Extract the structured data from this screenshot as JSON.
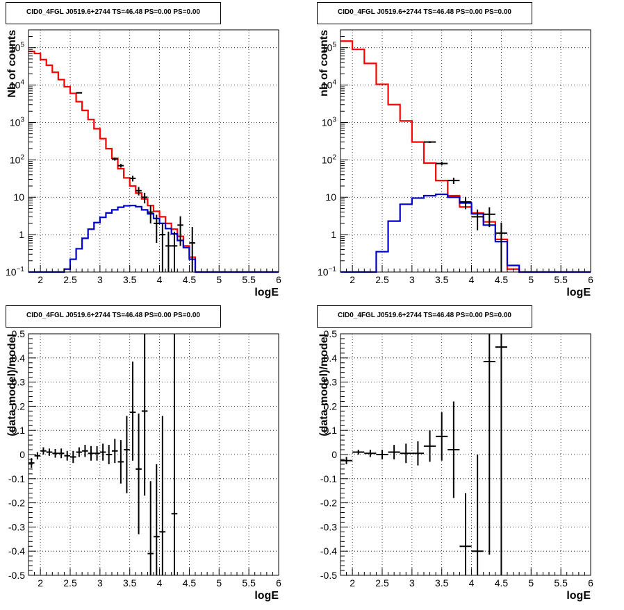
{
  "colors": {
    "model": "#ff0000",
    "source": "#0000cc",
    "data": "#000000",
    "frame": "#000000"
  },
  "chart_data": [
    {
      "type": "line",
      "title": "CID0_4FGL J0519.6+2744 TS=46.48 PS=0.00 PS=0.00",
      "xlabel": "logE",
      "ylabel": "Nb of counts",
      "yscale": "log",
      "xlim": [
        1.8,
        6.0
      ],
      "ylim": [
        0.1,
        300000
      ],
      "grid": true,
      "xticks": [
        "2",
        "2.5",
        "3",
        "3.5",
        "4",
        "4.5",
        "5",
        "5.5",
        "6"
      ],
      "yticks": [
        "10^-1",
        "1",
        "10",
        "10^2",
        "10^3",
        "10^4",
        "10^5"
      ],
      "series": [
        {
          "style": "step",
          "color": "model",
          "bin_width": 0.1,
          "x": [
            1.85,
            1.95,
            2.05,
            2.15,
            2.25,
            2.35,
            2.45,
            2.55,
            2.65,
            2.75,
            2.85,
            2.95,
            3.05,
            3.15,
            3.25,
            3.35,
            3.45,
            3.55,
            3.65,
            3.75,
            3.85,
            3.95,
            4.05,
            4.15,
            4.25,
            4.35,
            4.45,
            4.55,
            4.65,
            4.75,
            4.85,
            4.95,
            5.05,
            5.15,
            5.25,
            5.35,
            5.45,
            5.55,
            5.65,
            5.75,
            5.85,
            5.95
          ],
          "values": [
            80000,
            70000,
            48000,
            34000,
            22000,
            14000,
            9000,
            6000,
            3600,
            2100,
            1200,
            680,
            370,
            200,
            110,
            58,
            33,
            20,
            13,
            9,
            6,
            4.2,
            3,
            2,
            1.4,
            0.9,
            0.5,
            0.25,
            0.1,
            0.1,
            0.1,
            0.1,
            0.1,
            0.1,
            0.1,
            0.1,
            0.1,
            0.1,
            0.1,
            0.1,
            0.1,
            0.1
          ]
        },
        {
          "style": "step",
          "color": "source",
          "bin_width": 0.1,
          "x": [
            1.85,
            1.95,
            2.05,
            2.15,
            2.25,
            2.35,
            2.45,
            2.55,
            2.65,
            2.75,
            2.85,
            2.95,
            3.05,
            3.15,
            3.25,
            3.35,
            3.45,
            3.55,
            3.65,
            3.75,
            3.85,
            3.95,
            4.05,
            4.15,
            4.25,
            4.35,
            4.45,
            4.55,
            4.65,
            4.75,
            4.85,
            4.95,
            5.05,
            5.15,
            5.25,
            5.35,
            5.45,
            5.55,
            5.65,
            5.75,
            5.85,
            5.95
          ],
          "values": [
            0.1,
            0.1,
            0.1,
            0.1,
            0.1,
            0.1,
            0.12,
            0.22,
            0.42,
            0.8,
            1.4,
            2.1,
            2.9,
            3.8,
            4.6,
            5.4,
            5.9,
            6.0,
            5.6,
            4.6,
            3.6,
            2.7,
            2.0,
            1.45,
            1.05,
            0.7,
            0.45,
            0.22,
            0.1,
            0.1,
            0.1,
            0.1,
            0.1,
            0.1,
            0.1,
            0.1,
            0.1,
            0.1,
            0.1,
            0.1,
            0.1,
            0.1
          ]
        },
        {
          "style": "points",
          "color": "data",
          "bin_width": 0.1,
          "x": [
            2.65,
            3.25,
            3.35,
            3.55,
            3.65,
            3.75,
            3.85,
            3.95,
            4.05,
            4.15,
            4.25,
            4.35,
            4.55
          ],
          "values": [
            6200,
            105,
            70,
            32,
            15,
            10,
            4,
            2,
            1,
            0.5,
            0.5,
            1.8,
            0.6
          ],
          "err_low": [
            80,
            10,
            8,
            5.5,
            3.8,
            3.1,
            2,
            1.4,
            1,
            0.5,
            0.5,
            1.3,
            0.6
          ],
          "err_high": [
            80,
            10,
            8,
            5.5,
            3.8,
            3.1,
            2,
            1.4,
            1,
            0.7,
            0.7,
            1.3,
            1
          ]
        }
      ]
    },
    {
      "type": "line",
      "title": "CID0_4FGL J0519.6+2744 TS=46.48 PS=0.00 PS=0.00",
      "xlabel": "logE",
      "ylabel": "nb of counts",
      "yscale": "log",
      "xlim": [
        1.8,
        6.0
      ],
      "ylim": [
        0.1,
        300000
      ],
      "grid": true,
      "xticks": [
        "2",
        "2.5",
        "3",
        "3.5",
        "4",
        "4.5",
        "5",
        "5.5",
        "6"
      ],
      "yticks": [
        "10^-1",
        "1",
        "10",
        "10^2",
        "10^3",
        "10^4",
        "10^5"
      ],
      "series": [
        {
          "style": "step",
          "color": "model",
          "bin_width": 0.2,
          "x": [
            1.9,
            2.1,
            2.3,
            2.5,
            2.7,
            2.9,
            3.1,
            3.3,
            3.5,
            3.7,
            3.9,
            4.1,
            4.3,
            4.5,
            4.7,
            4.9,
            5.1,
            5.3,
            5.5,
            5.7,
            5.9
          ],
          "values": [
            150000,
            90000,
            38000,
            10500,
            3000,
            1100,
            300,
            82,
            28,
            11,
            5.5,
            3.8,
            2.2,
            0.75,
            0.12,
            0.1,
            0.1,
            0.1,
            0.1,
            0.1,
            0.1
          ]
        },
        {
          "style": "step",
          "color": "source",
          "bin_width": 0.2,
          "x": [
            1.9,
            2.1,
            2.3,
            2.5,
            2.7,
            2.9,
            3.1,
            3.3,
            3.5,
            3.7,
            3.9,
            4.1,
            4.3,
            4.5,
            4.7,
            4.9,
            5.1,
            5.3,
            5.5,
            5.7,
            5.9
          ],
          "values": [
            0.1,
            0.1,
            0.1,
            0.35,
            2.3,
            6.5,
            9.5,
            11,
            12,
            10,
            7,
            3.6,
            1.8,
            0.65,
            0.15,
            0.1,
            0.1,
            0.1,
            0.1,
            0.1,
            0.1
          ]
        },
        {
          "style": "points",
          "color": "data",
          "bin_width": 0.2,
          "x": [
            3.3,
            3.5,
            3.7,
            3.9,
            4.1,
            4.3,
            4.5
          ],
          "values": [
            300,
            80,
            28,
            7.5,
            3,
            3.5,
            1.1
          ],
          "err_low": [
            17,
            9,
            5.3,
            2.7,
            1.7,
            1.9,
            1
          ],
          "err_high": [
            17,
            9,
            5.3,
            2.7,
            1.7,
            1.9,
            1
          ]
        }
      ]
    },
    {
      "type": "scatter",
      "title": "CID0_4FGL J0519.6+2744 TS=46.48 PS=0.00 PS=0.00",
      "xlabel": "logE",
      "ylabel": "(data-model)/model",
      "xlim": [
        1.8,
        6.0
      ],
      "ylim": [
        -0.5,
        0.5
      ],
      "grid": true,
      "xticks": [
        "2",
        "2.5",
        "3",
        "3.5",
        "4",
        "4.5",
        "5",
        "5.5",
        "6"
      ],
      "yticks": [
        "-0.5",
        "-0.4",
        "-0.3",
        "-0.2",
        "-0.1",
        "0",
        "0.1",
        "0.2",
        "0.3",
        "0.4",
        "0.5"
      ],
      "series": [
        {
          "style": "points",
          "color": "data",
          "bin_width": 0.1,
          "x": [
            1.85,
            1.95,
            2.05,
            2.15,
            2.25,
            2.35,
            2.45,
            2.55,
            2.65,
            2.75,
            2.85,
            2.95,
            3.05,
            3.15,
            3.25,
            3.35,
            3.45,
            3.55,
            3.65,
            3.75,
            3.85,
            3.95,
            4.05,
            4.25
          ],
          "values": [
            -0.035,
            -0.005,
            0.015,
            0.01,
            0.005,
            0.005,
            -0.005,
            -0.01,
            0.01,
            0.015,
            0.005,
            0.005,
            0.01,
            0.0,
            0.015,
            -0.03,
            0.02,
            0.175,
            -0.06,
            0.18,
            -0.41,
            -0.34,
            -0.32,
            -0.245
          ],
          "err_low": [
            0.02,
            0.015,
            0.015,
            0.015,
            0.018,
            0.02,
            0.02,
            0.025,
            0.02,
            0.025,
            0.03,
            0.03,
            0.035,
            0.04,
            0.05,
            0.09,
            0.18,
            0.2,
            0.27,
            0.35,
            0.2,
            0.27,
            0.25,
            0.3
          ],
          "err_high": [
            0.02,
            0.015,
            0.015,
            0.015,
            0.018,
            0.02,
            0.02,
            0.025,
            0.02,
            0.025,
            0.03,
            0.03,
            0.035,
            0.04,
            0.05,
            0.09,
            0.14,
            0.21,
            0.23,
            0.35,
            0.3,
            0.3,
            0.48,
            0.75
          ]
        }
      ]
    },
    {
      "type": "scatter",
      "title": "CID0_4FGL J0519.6+2744 TS=46.48 PS=0.00 PS=0.00",
      "xlabel": "logE",
      "ylabel": "(data-model)/model",
      "xlim": [
        1.8,
        6.0
      ],
      "ylim": [
        -0.5,
        0.5
      ],
      "grid": true,
      "xticks": [
        "2",
        "2.5",
        "3",
        "3.5",
        "4",
        "4.5",
        "5",
        "5.5",
        "6"
      ],
      "yticks": [
        "-0.5",
        "-0.4",
        "-0.3",
        "-0.2",
        "-0.1",
        "0",
        "0.1",
        "0.2",
        "0.3",
        "0.4",
        "0.5"
      ],
      "series": [
        {
          "style": "points",
          "color": "data",
          "bin_width": 0.2,
          "x": [
            1.9,
            2.1,
            2.3,
            2.5,
            2.7,
            2.9,
            3.1,
            3.3,
            3.5,
            3.7,
            3.9,
            4.1,
            4.3,
            4.5
          ],
          "values": [
            -0.025,
            0.01,
            0.005,
            0.0,
            0.01,
            0.005,
            0.005,
            0.035,
            0.075,
            0.02,
            -0.38,
            -0.4,
            0.385,
            0.445
          ],
          "err_low": [
            0.015,
            0.01,
            0.015,
            0.02,
            0.03,
            0.04,
            0.05,
            0.065,
            0.1,
            0.2,
            0.3,
            0.5,
            0.8,
            0.95
          ],
          "err_high": [
            0.015,
            0.01,
            0.015,
            0.02,
            0.03,
            0.04,
            0.05,
            0.065,
            0.1,
            0.2,
            0.22,
            0.4,
            0.8,
            0.95
          ]
        }
      ]
    }
  ]
}
